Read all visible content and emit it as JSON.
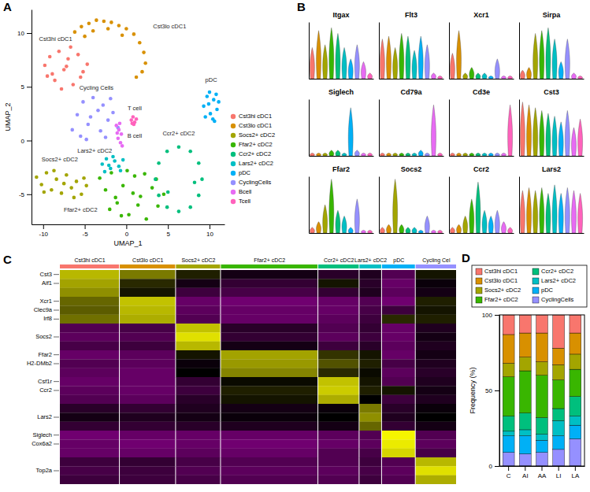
{
  "chart_data": [
    {
      "type": "scatter",
      "panel_label": "A",
      "xlabel": "UMAP_1",
      "ylabel": "UMAP_2",
      "xlim": [
        -11.4,
        11.8
      ],
      "ylim": [
        -7.8,
        12.2
      ],
      "xticks": [
        -10,
        -5,
        0,
        5,
        10
      ],
      "yticks": [
        -5,
        0,
        5,
        10
      ],
      "legend": "right",
      "series": [
        {
          "name": "Cst3hi cDC1",
          "color": "#F8766D",
          "x": [
            -9.8,
            -9.2,
            -8.6,
            -8.1,
            -7.5,
            -7.0,
            -6.4,
            -5.8,
            -5.2,
            -4.7,
            -8.9,
            -7.8,
            -6.7,
            -5.5,
            -9.5,
            -7.2
          ],
          "values": [
            7.0,
            7.8,
            5.6,
            8.3,
            6.6,
            7.6,
            5.2,
            8.0,
            6.4,
            7.1,
            6.2,
            4.8,
            8.7,
            5.9,
            6.0,
            6.9
          ]
        },
        {
          "name": "Cst3lo cDC1",
          "color": "#D89000",
          "x": [
            -6.2,
            -5.4,
            -4.5,
            -3.6,
            -2.7,
            -1.8,
            -0.9,
            0.0,
            0.9,
            1.6,
            2.1,
            2.3,
            1.9,
            1.2,
            -4.0,
            -2.2,
            -0.5,
            -5.0
          ],
          "values": [
            10.1,
            10.6,
            10.9,
            11.2,
            11.1,
            11.0,
            10.7,
            10.4,
            9.9,
            9.1,
            8.2,
            7.2,
            6.4,
            5.9,
            10.2,
            10.4,
            9.8,
            9.7
          ]
        },
        {
          "name": "Socs2+ cDC2",
          "color": "#A3A500",
          "x": [
            -10.8,
            -10.2,
            -9.6,
            -9.0,
            -8.4,
            -7.8,
            -7.2,
            -6.6,
            -6.0,
            -5.4,
            -4.8,
            -9.9,
            -8.7,
            -7.5,
            -6.3,
            -5.1
          ],
          "values": [
            -3.4,
            -4.1,
            -3.0,
            -4.6,
            -3.6,
            -4.9,
            -3.2,
            -4.4,
            -3.8,
            -5.0,
            -4.2,
            -4.8,
            -2.8,
            -4.0,
            -5.3,
            -3.5
          ]
        },
        {
          "name": "Ffar2+ cDC2",
          "color": "#39B600",
          "x": [
            -3.2,
            -2.5,
            -1.8,
            -1.1,
            -0.4,
            0.3,
            1.0,
            1.7,
            2.4,
            3.1,
            3.8,
            4.5,
            -2.0,
            -0.6,
            0.8,
            2.2,
            3.6,
            1.4,
            0.1,
            -1.3
          ],
          "values": [
            -3.5,
            -4.6,
            -3.0,
            -5.8,
            -4.2,
            -6.9,
            -3.3,
            -5.2,
            -7.3,
            -4.4,
            -6.1,
            -5.0,
            -6.4,
            -7.0,
            -4.9,
            -3.1,
            -3.6,
            -6.0,
            -2.8,
            -5.3
          ]
        },
        {
          "name": "Ccr2+ cDC2",
          "color": "#00BF7D",
          "x": [
            9.1,
            8.7,
            7.7,
            6.3,
            4.9,
            3.9,
            3.5,
            3.9,
            4.9,
            6.3,
            7.7,
            8.7,
            8.2,
            5.0
          ],
          "values": [
            -3.6,
            -2.1,
            -1.0,
            -0.6,
            -1.0,
            -2.1,
            -3.6,
            -5.1,
            -6.2,
            -6.6,
            -6.2,
            -5.1,
            -3.9,
            -4.8
          ]
        },
        {
          "name": "Lars2+ cDC2",
          "color": "#00BFC4",
          "x": [
            -2.9,
            -2.4,
            -1.9,
            -1.4,
            -0.9,
            -0.4,
            -2.6,
            -1.6,
            -0.7,
            -2.1
          ],
          "values": [
            -2.2,
            -1.7,
            -2.6,
            -1.9,
            -2.4,
            -1.8,
            -2.9,
            -1.5,
            -2.8,
            -2.3
          ]
        },
        {
          "name": "pDC",
          "color": "#00B0F6",
          "x": [
            9.3,
            9.7,
            10.1,
            10.5,
            10.9,
            9.5,
            10.0,
            10.6,
            11.1,
            9.9,
            10.4,
            10.8
          ],
          "values": [
            3.2,
            4.1,
            2.5,
            3.8,
            2.9,
            2.2,
            4.5,
            1.8,
            3.6,
            3.4,
            2.0,
            4.3
          ]
        },
        {
          "name": "CyclingCells",
          "color": "#9590FF",
          "x": [
            -6.5,
            -5.9,
            -5.2,
            -4.6,
            -4.0,
            -3.4,
            -2.8,
            -2.2,
            -1.6,
            -1.0,
            -5.5,
            -4.3,
            -3.1,
            -1.9,
            -4.8,
            -2.5
          ],
          "values": [
            1.0,
            2.4,
            3.6,
            1.5,
            4.0,
            2.8,
            3.3,
            1.9,
            2.6,
            1.2,
            0.4,
            2.2,
            0.9,
            3.9,
            0.1,
            0.3
          ]
        },
        {
          "name": "Bcell",
          "color": "#E76BF3",
          "x": [
            -1.2,
            -0.9,
            -0.6,
            -1.0,
            -0.7,
            -0.5,
            -1.1,
            -0.8
          ],
          "values": [
            1.4,
            1.0,
            0.6,
            0.2,
            -0.2,
            -0.5,
            0.7,
            1.6
          ]
        },
        {
          "name": "Tcell",
          "color": "#FF62BC",
          "x": [
            0.6,
            0.8,
            1.0,
            1.2,
            0.9,
            0.7
          ],
          "values": [
            1.9,
            2.2,
            1.7,
            2.0,
            1.5,
            1.6
          ]
        }
      ],
      "annotations": [
        {
          "text": "Cst3hi cDC1",
          "x": -8.5,
          "y": 9.4
        },
        {
          "text": "Cst3lo cDC1",
          "x": 5.2,
          "y": 10.6
        },
        {
          "text": "Cycling Cells",
          "x": -3.6,
          "y": 4.9
        },
        {
          "text": "T cell",
          "x": 1.0,
          "y": 3.0
        },
        {
          "text": "B cell",
          "x": 1.0,
          "y": 0.4
        },
        {
          "text": "Socs2+ cDC2",
          "x": -8.0,
          "y": -1.8
        },
        {
          "text": "Lars2+ cDC2",
          "x": -3.8,
          "y": -1.0
        },
        {
          "text": "Ffar2+ cDC2",
          "x": -5.5,
          "y": -6.5
        },
        {
          "text": "Ccr2+ cDC2",
          "x": 6.3,
          "y": 0.6
        },
        {
          "text": "pDC",
          "x": 10.2,
          "y": 5.6
        }
      ]
    },
    {
      "type": "violin",
      "panel_label": "B",
      "ylim": [
        0,
        1
      ],
      "tick_labels": false,
      "colors": [
        "#F8766D",
        "#D89000",
        "#A3A500",
        "#39B600",
        "#00BF7D",
        "#00BFC4",
        "#00B0F6",
        "#9590FF",
        "#E76BF3",
        "#FF62BC"
      ],
      "panels": [
        {
          "title": "Itgax",
          "values": [
            0.55,
            0.85,
            0.6,
            0.9,
            0.8,
            0.55,
            0.35,
            0.6,
            0.3,
            0.1
          ]
        },
        {
          "title": "Flt3",
          "values": [
            0.7,
            0.75,
            0.55,
            0.8,
            0.75,
            0.5,
            0.75,
            0.6,
            0.1,
            0.05
          ]
        },
        {
          "title": "Xcr1",
          "values": [
            0.45,
            0.85,
            0.1,
            0.2,
            0.1,
            0.1,
            0.05,
            0.35,
            0.05,
            0.05
          ]
        },
        {
          "title": "Sirpa",
          "values": [
            0.15,
            0.2,
            0.8,
            0.85,
            0.9,
            0.7,
            0.3,
            0.7,
            0.1,
            0.05
          ]
        },
        {
          "title": "Siglech",
          "values": [
            0.05,
            0.05,
            0.05,
            0.1,
            0.1,
            0.05,
            0.85,
            0.1,
            0.05,
            0.05
          ]
        },
        {
          "title": "Cd79a",
          "values": [
            0.05,
            0.05,
            0.05,
            0.05,
            0.05,
            0.05,
            0.1,
            0.05,
            0.9,
            0.05
          ]
        },
        {
          "title": "Cd3e",
          "values": [
            0.05,
            0.05,
            0.05,
            0.05,
            0.05,
            0.05,
            0.05,
            0.05,
            0.05,
            0.9
          ]
        },
        {
          "title": "Cst3",
          "values": [
            0.95,
            0.9,
            0.85,
            0.8,
            0.75,
            0.7,
            0.6,
            0.8,
            0.5,
            0.65
          ]
        },
        {
          "title": "Ffar2",
          "values": [
            0.1,
            0.2,
            0.5,
            0.95,
            0.4,
            0.3,
            0.1,
            0.6,
            0.05,
            0.05
          ]
        },
        {
          "title": "Socs2",
          "values": [
            0.1,
            0.15,
            0.95,
            0.15,
            0.1,
            0.1,
            0.05,
            0.3,
            0.05,
            0.05
          ]
        },
        {
          "title": "Ccr2",
          "values": [
            0.1,
            0.15,
            0.3,
            0.6,
            0.9,
            0.4,
            0.3,
            0.4,
            0.2,
            0.1
          ]
        },
        {
          "title": "Lars2",
          "values": [
            0.75,
            0.8,
            0.75,
            0.8,
            0.7,
            0.85,
            0.7,
            0.8,
            0.75,
            0.7
          ]
        }
      ]
    },
    {
      "type": "heatmap",
      "panel_label": "C",
      "zlim": [
        -2.5,
        2.5
      ],
      "columns": [
        "Cst3hi cDC1",
        "Cst3lo cDC1",
        "Socs2+ cDC2",
        "Ffar2+ cDC2",
        "Ccr2+ cDC2",
        "Lars2+ cDC2",
        "pDC",
        "Cycling Cel"
      ],
      "column_sizes": [
        80,
        75,
        60,
        130,
        55,
        30,
        45,
        55
      ],
      "colors": [
        "#F8766D",
        "#D89000",
        "#A3A500",
        "#39B600",
        "#00BF7D",
        "#00BFC4",
        "#00B0F6",
        "#9590FF"
      ],
      "rows": [
        "Cst3",
        "Aif1",
        null,
        "Xcr1",
        "Clec9a",
        "Irf8",
        null,
        "Socs2",
        null,
        "Ffar2",
        "H2-DMb2",
        null,
        "Csf1r",
        "Ccr2",
        null,
        null,
        "Lars2",
        null,
        "Siglech",
        "Cox6a2",
        null,
        null,
        "Top2a",
        null
      ],
      "values": [
        [
          1.8,
          1.2,
          0.3,
          -0.2,
          -0.4,
          -0.3,
          -0.8,
          0.2
        ],
        [
          1.6,
          0.4,
          -0.2,
          -0.5,
          0.2,
          -0.4,
          -1.0,
          -0.1
        ],
        [
          1.4,
          0.2,
          -0.6,
          -0.7,
          -0.5,
          -0.3,
          -0.9,
          -0.2
        ],
        [
          1.0,
          1.9,
          -1.0,
          -1.1,
          -1.0,
          -0.8,
          -1.1,
          0.3
        ],
        [
          0.9,
          1.8,
          -0.9,
          -1.0,
          -1.0,
          -0.7,
          -0.6,
          0.2
        ],
        [
          1.1,
          1.7,
          -0.8,
          -1.0,
          -0.9,
          -0.6,
          0.4,
          0.3
        ],
        [
          -0.8,
          -0.7,
          1.9,
          -0.4,
          -0.8,
          -0.5,
          -1.0,
          -0.3
        ],
        [
          -0.9,
          -0.8,
          2.2,
          -0.5,
          -0.9,
          -0.6,
          -1.0,
          -0.2
        ],
        [
          -0.7,
          -0.6,
          1.8,
          -0.2,
          -0.6,
          -0.4,
          -0.9,
          -0.3
        ],
        [
          -1.0,
          -0.9,
          0.2,
          1.6,
          0.5,
          0.2,
          -1.0,
          -0.2
        ],
        [
          -0.8,
          -0.9,
          -0.1,
          1.5,
          0.8,
          0.3,
          -0.7,
          -0.3
        ],
        [
          -0.9,
          -1.0,
          0.0,
          1.3,
          0.4,
          0.1,
          -0.9,
          -0.4
        ],
        [
          -1.0,
          -1.0,
          -0.5,
          0.1,
          1.9,
          0.2,
          -0.8,
          -0.3
        ],
        [
          -0.9,
          -1.0,
          -0.6,
          0.3,
          2.0,
          0.3,
          0.2,
          -0.2
        ],
        [
          -0.8,
          -0.9,
          -0.4,
          0.2,
          1.7,
          0.0,
          -0.6,
          -0.3
        ],
        [
          -0.4,
          -0.5,
          -0.3,
          -0.2,
          -0.1,
          1.2,
          -0.4,
          -0.1
        ],
        [
          -0.2,
          -0.3,
          -0.2,
          -0.1,
          0.0,
          1.4,
          -0.3,
          0.0
        ],
        [
          -0.5,
          -0.5,
          -0.4,
          -0.3,
          -0.2,
          1.0,
          -0.5,
          -0.2
        ],
        [
          -1.1,
          -1.0,
          -1.0,
          -1.0,
          -0.9,
          -0.8,
          2.4,
          -0.8
        ],
        [
          -1.0,
          -1.1,
          -1.0,
          -1.1,
          -1.0,
          -0.9,
          2.3,
          -0.9
        ],
        [
          -1.0,
          -1.0,
          -0.9,
          -1.0,
          -0.8,
          -0.7,
          2.1,
          -0.7
        ],
        [
          -0.6,
          -0.5,
          -0.7,
          -0.8,
          -0.8,
          -0.6,
          -0.8,
          1.8
        ],
        [
          -0.7,
          -0.6,
          -0.8,
          -0.9,
          -0.9,
          -0.7,
          -0.9,
          2.2
        ],
        [
          -0.6,
          -0.6,
          -0.7,
          -0.8,
          -0.8,
          -0.6,
          -0.8,
          1.7
        ]
      ]
    },
    {
      "type": "bar",
      "panel_label": "D",
      "stacked": true,
      "legend": "top",
      "ylabel": "Frequency (%)",
      "categories": [
        "C",
        "AI",
        "AA",
        "LI",
        "LA"
      ],
      "ylim": [
        0,
        100
      ],
      "yticks": [
        0,
        50,
        100
      ],
      "series": [
        {
          "name": "Cst3hi cDC1",
          "color": "#F8766D",
          "values": [
            13,
            12,
            12,
            22,
            12
          ]
        },
        {
          "name": "Cst3lo cDC1",
          "color": "#D89000",
          "values": [
            19,
            16,
            19,
            11,
            14
          ]
        },
        {
          "name": "Socs2+ cDC2",
          "color": "#A3A500",
          "values": [
            9,
            9,
            9,
            10,
            10
          ]
        },
        {
          "name": "Ffar2+ cDC2",
          "color": "#39B600",
          "values": [
            26,
            28,
            28,
            19,
            18
          ]
        },
        {
          "name": "Ccr2+ cDC2",
          "color": "#00BF7D",
          "values": [
            10,
            11,
            11,
            8,
            13
          ]
        },
        {
          "name": "Lars2+ cDC2",
          "color": "#00BFC4",
          "values": [
            3,
            4,
            4,
            10,
            6
          ]
        },
        {
          "name": "pDC",
          "color": "#00B0F6",
          "values": [
            11,
            12,
            8,
            9,
            9
          ]
        },
        {
          "name": "CyclingCells",
          "color": "#9590FF",
          "values": [
            9,
            8,
            9,
            11,
            18
          ]
        }
      ]
    }
  ]
}
